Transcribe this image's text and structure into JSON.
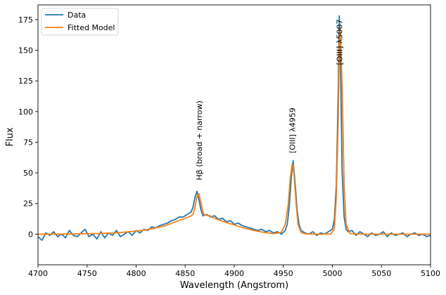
{
  "chart_data": {
    "type": "line",
    "xlabel": "Wavelength (Angstrom)",
    "ylabel": "Flux",
    "xlim": [
      4700,
      5100
    ],
    "ylim": [
      -25,
      187
    ],
    "xticks": [
      4700,
      4750,
      4800,
      4850,
      4900,
      4950,
      5000,
      5050,
      5100
    ],
    "yticks": [
      0,
      25,
      50,
      75,
      100,
      125,
      150,
      175
    ],
    "xtick_labels": [
      "4700",
      "4750",
      "4800",
      "4850",
      "4900",
      "4950",
      "5000",
      "5050",
      "5100"
    ],
    "ytick_labels": [
      "0",
      "25",
      "50",
      "75",
      "100",
      "125",
      "150",
      "175"
    ],
    "grid": false,
    "legend_position": "top-left",
    "series": [
      {
        "name": "Data",
        "color": "#1f77b4",
        "x": [
          4700,
          4704,
          4708,
          4712,
          4716,
          4720,
          4724,
          4728,
          4732,
          4736,
          4740,
          4744,
          4748,
          4752,
          4756,
          4760,
          4764,
          4768,
          4772,
          4776,
          4780,
          4784,
          4788,
          4792,
          4796,
          4800,
          4804,
          4808,
          4812,
          4816,
          4820,
          4824,
          4828,
          4832,
          4836,
          4840,
          4844,
          4848,
          4852,
          4856,
          4858,
          4860,
          4862,
          4864,
          4866,
          4868,
          4872,
          4876,
          4880,
          4884,
          4888,
          4892,
          4896,
          4900,
          4904,
          4908,
          4912,
          4916,
          4920,
          4924,
          4928,
          4932,
          4936,
          4940,
          4944,
          4948,
          4952,
          4954,
          4956,
          4958,
          4960,
          4962,
          4964,
          4966,
          4968,
          4972,
          4976,
          4980,
          4984,
          4988,
          4992,
          4996,
          5000,
          5002,
          5004,
          5006,
          5007,
          5008,
          5010,
          5012,
          5014,
          5016,
          5020,
          5024,
          5028,
          5032,
          5036,
          5040,
          5044,
          5048,
          5052,
          5056,
          5060,
          5064,
          5068,
          5072,
          5076,
          5080,
          5084,
          5088,
          5092,
          5096,
          5100
        ],
        "y": [
          -2,
          -5,
          1,
          -1,
          2,
          -2,
          0,
          -3,
          3,
          -1,
          -2,
          1,
          4,
          -2,
          0,
          -4,
          2,
          -3,
          1,
          -1,
          3,
          -2,
          0,
          2,
          -1,
          3,
          1,
          4,
          3,
          6,
          5,
          7,
          8,
          9,
          11,
          12,
          14,
          14,
          16,
          18,
          22,
          30,
          35,
          28,
          20,
          15,
          16,
          14,
          15,
          12,
          13,
          10,
          11,
          8,
          9,
          7,
          6,
          5,
          4,
          3,
          4,
          2,
          3,
          1,
          2,
          0,
          3,
          8,
          22,
          45,
          60,
          42,
          20,
          8,
          3,
          1,
          0,
          2,
          -1,
          1,
          0,
          2,
          4,
          12,
          40,
          120,
          178,
          150,
          50,
          14,
          4,
          2,
          3,
          -1,
          2,
          0,
          -2,
          1,
          -1,
          0,
          2,
          -2,
          1,
          -1,
          0,
          1,
          -2,
          0,
          1,
          -1,
          0,
          -2,
          -1
        ]
      },
      {
        "name": "Fitted Model",
        "color": "#ff7f0e",
        "x": [
          4700,
          4720,
          4740,
          4760,
          4780,
          4800,
          4810,
          4820,
          4830,
          4840,
          4850,
          4855,
          4858,
          4860,
          4862,
          4864,
          4866,
          4868,
          4870,
          4875,
          4880,
          4890,
          4900,
          4910,
          4920,
          4930,
          4940,
          4948,
          4952,
          4955,
          4957,
          4959,
          4960,
          4961,
          4963,
          4965,
          4968,
          4972,
          4980,
          4990,
          4998,
          5002,
          5004,
          5006,
          5007,
          5008,
          5010,
          5012,
          5014,
          5018,
          5030,
          5050,
          5070,
          5100
        ],
        "y": [
          0,
          0,
          0.2,
          0.5,
          1,
          2.5,
          3.5,
          5,
          7,
          10,
          13,
          14.5,
          16,
          22,
          31,
          33,
          26,
          18,
          15.5,
          15,
          13,
          10,
          7.5,
          5,
          3,
          1.5,
          0.5,
          1.5,
          8,
          24,
          45,
          57,
          56,
          48,
          25,
          8,
          1.5,
          0.3,
          0,
          0,
          0,
          4,
          30,
          95,
          150,
          168,
          120,
          40,
          8,
          0.5,
          0,
          0,
          0,
          0
        ]
      }
    ],
    "annotations": [
      {
        "text": "Hβ (broad + narrow)",
        "x": 4864,
        "y": 44
      },
      {
        "text": "[OIII] λ4959",
        "x": 4959,
        "y": 66
      },
      {
        "text": "[OIII] λ5007",
        "x": 5007,
        "y": 138
      }
    ]
  }
}
